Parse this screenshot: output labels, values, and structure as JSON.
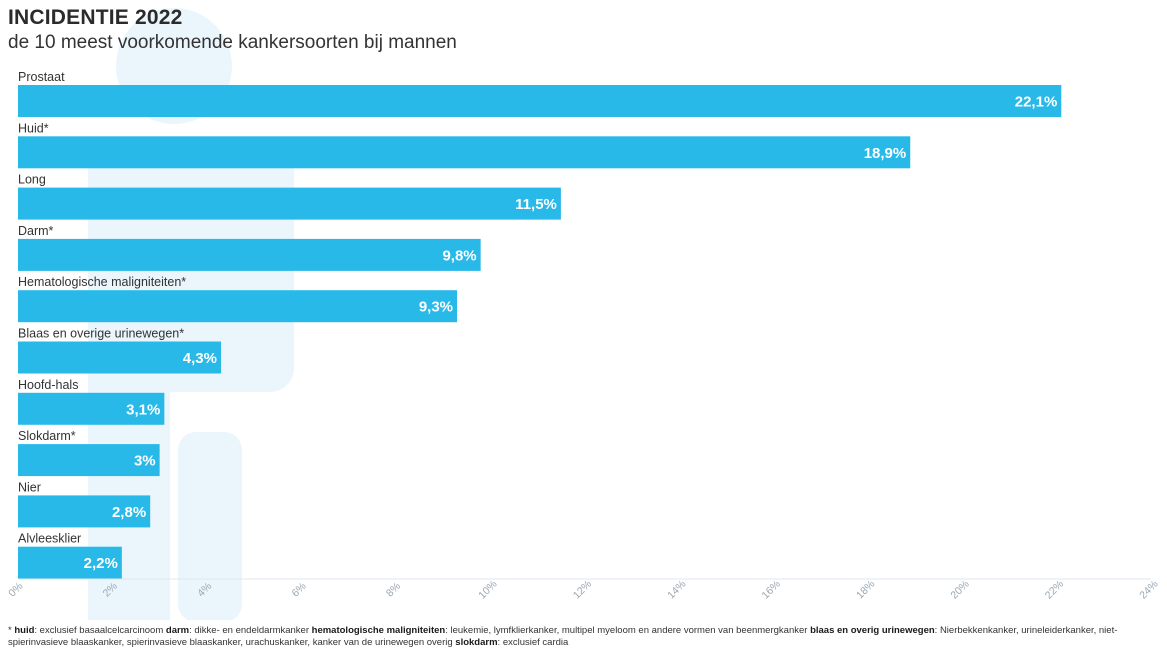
{
  "header": {
    "title": "INCIDENTIE 2022",
    "subtitle": "de 10 meest voorkomende kankersoorten bij mannen"
  },
  "colors": {
    "bar": "#29b9e8",
    "silhouette": "#eaf6fc",
    "axis": "#dfe6ec",
    "tick_text": "#9aa8b4"
  },
  "chart_data": {
    "type": "bar",
    "orientation": "horizontal",
    "categories": [
      "Prostaat",
      "Huid*",
      "Long",
      "Darm*",
      "Hematologische maligniteiten*",
      "Blaas en overige urinewegen*",
      "Hoofd-hals",
      "Slokdarm*",
      "Nier",
      "Alvleesklier"
    ],
    "values": [
      22.1,
      18.9,
      11.5,
      9.8,
      9.3,
      4.3,
      3.1,
      3,
      2.8,
      2.2
    ],
    "value_labels": [
      "22,1%",
      "18,9%",
      "11,5%",
      "9,8%",
      "9,3%",
      "4,3%",
      "3,1%",
      "3%",
      "2,8%",
      "2,2%"
    ],
    "xlim": [
      0,
      24
    ],
    "xticks": [
      0,
      2,
      4,
      6,
      8,
      10,
      12,
      14,
      16,
      18,
      20,
      22,
      24
    ],
    "xtick_labels": [
      "0%",
      "2%",
      "4%",
      "6%",
      "8%",
      "10%",
      "12%",
      "14%",
      "16%",
      "18%",
      "20%",
      "22%",
      "24%"
    ],
    "grid": false,
    "legend": "none"
  },
  "footnote": {
    "star": "* ",
    "t1": "huid",
    "d1": ": exclusief basaalcelcarcinoom ",
    "t2": "darm",
    "d2": ": dikke- en endeldarmkanker ",
    "t3": "hematologische maligniteiten",
    "d3": ": leukemie, lymfklierkanker, multipel myeloom en andere vormen van beenmergkanker ",
    "t4": "blaas en overig urinewegen",
    "d4": ": Nierbekkenkanker, urineleiderkanker, niet-spierinvasieve blaaskanker, spierinvasieve blaaskanker, urachuskanker, kanker van de urinewegen overig ",
    "t5": "slokdarm",
    "d5": ": exclusief cardia"
  }
}
